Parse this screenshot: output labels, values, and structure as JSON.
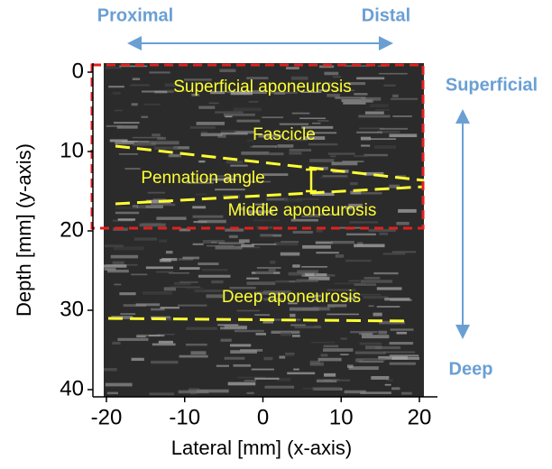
{
  "chart_data": {
    "type": "ultrasound",
    "xlabel": "Lateral [mm] (x-axis)",
    "ylabel": "Depth [mm] (y-axis)",
    "xlim": [
      -20,
      20
    ],
    "ylim": [
      0,
      40
    ],
    "xticks": [
      -20,
      -10,
      0,
      10,
      20
    ],
    "yticks": [
      0,
      10,
      20,
      30,
      40
    ],
    "annotations": [
      "Superficial aponeurosis",
      "Fascicle",
      "Pennation angle",
      "Middle aponeurosis",
      "Deep aponeurosis"
    ],
    "directions": [
      "Proximal",
      "Distal",
      "Superficial",
      "Deep"
    ]
  }
}
